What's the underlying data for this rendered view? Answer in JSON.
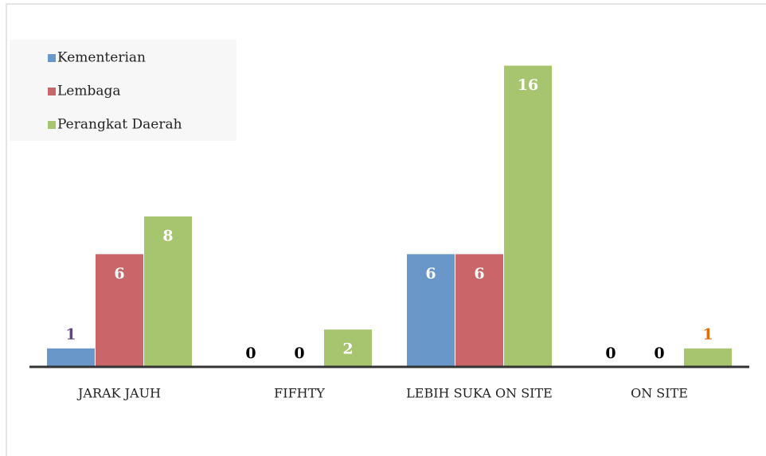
{
  "chart_data": {
    "type": "bar",
    "categories": [
      "JARAK JAUH",
      "FIFHTY",
      "LEBIH SUKA ON SITE",
      "ON SITE"
    ],
    "series": [
      {
        "name": "Kementerian",
        "color": "#6a97c9",
        "values": [
          1,
          0,
          6,
          0
        ],
        "label_colors": [
          "#5f497a",
          "#000000",
          "#ffffff",
          "#000000"
        ]
      },
      {
        "name": "Lembaga",
        "color": "#c9666a",
        "values": [
          6,
          0,
          6,
          0
        ],
        "label_colors": [
          "#ffffff",
          "#000000",
          "#ffffff",
          "#000000"
        ]
      },
      {
        "name": "Perangkat Daerah",
        "color": "#a7c46f",
        "values": [
          8,
          2,
          16,
          1
        ],
        "label_colors": [
          "#ffffff",
          "#ffffff",
          "#ffffff",
          "#e36c09"
        ]
      }
    ],
    "ylim": [
      0,
      16
    ],
    "legend": "top-left"
  }
}
